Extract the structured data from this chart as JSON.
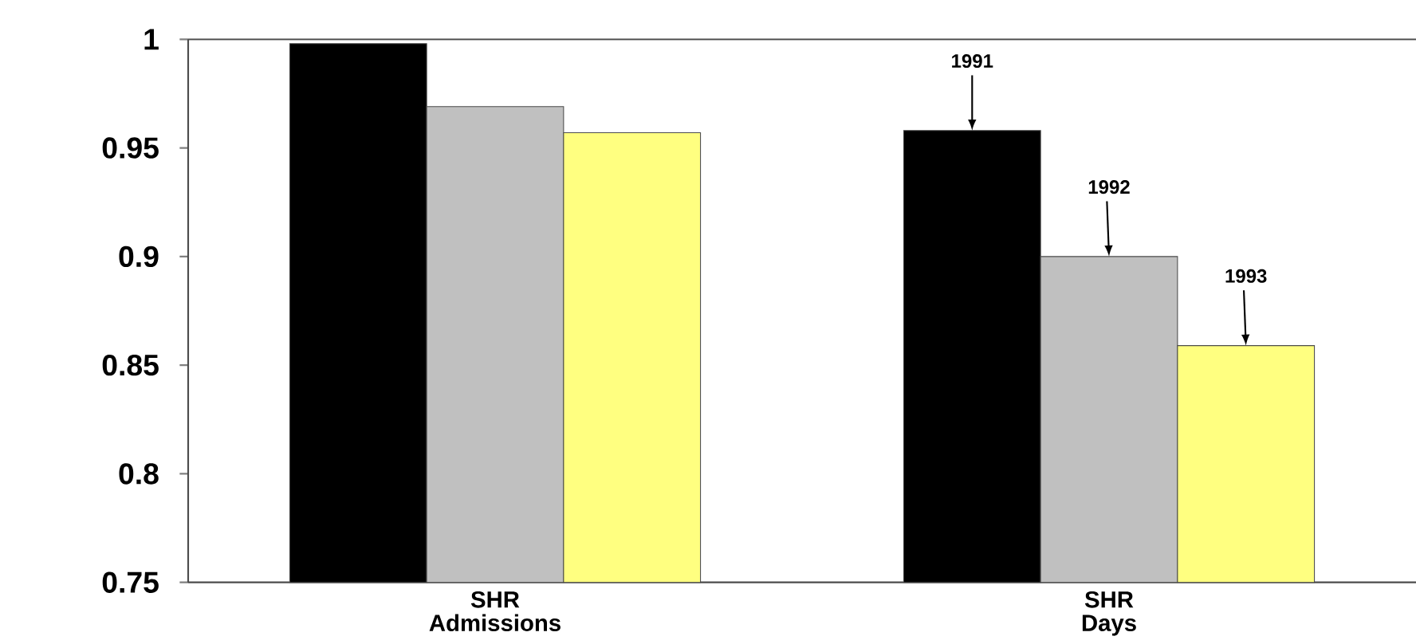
{
  "chart_data": {
    "type": "bar",
    "categories": [
      "SHR Admissions",
      "SHR Days"
    ],
    "series": [
      {
        "name": "1991",
        "color": "#000000",
        "values": [
          0.998,
          0.958
        ]
      },
      {
        "name": "1992",
        "color": "#c0c0c0",
        "values": [
          0.969,
          0.9
        ]
      },
      {
        "name": "1993",
        "color": "#ffff80",
        "values": [
          0.957,
          0.859
        ]
      }
    ],
    "ylim": [
      0.75,
      1
    ],
    "yticks": [
      0.75,
      0.8,
      0.85,
      0.9,
      0.95,
      1
    ],
    "grid": false,
    "legend": false
  }
}
